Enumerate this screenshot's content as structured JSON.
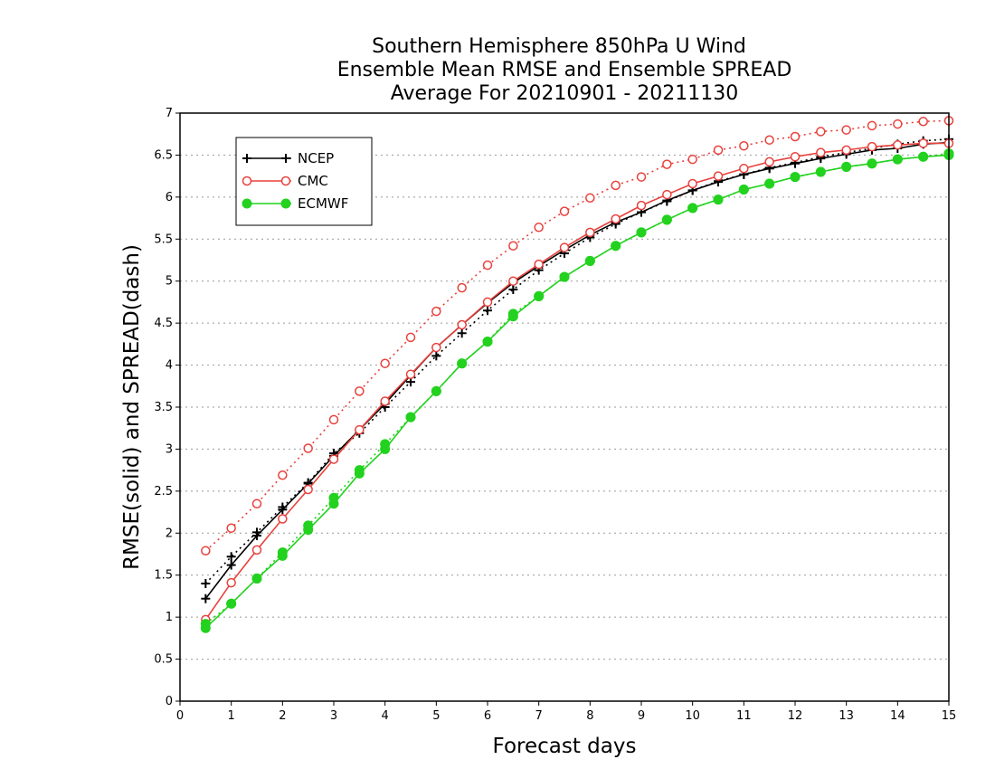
{
  "chart_data": {
    "type": "line",
    "title": [
      "Southern Hemisphere 850hPa U Wind",
      "Ensemble Mean RMSE and Ensemble SPREAD",
      "Average For 20210901 - 20211130"
    ],
    "xlabel": "Forecast days",
    "ylabel": "RMSE(solid) and SPREAD(dash)",
    "xlim": [
      0,
      15
    ],
    "ylim": [
      0,
      7
    ],
    "xticks": [
      "0",
      "1",
      "2",
      "3",
      "4",
      "5",
      "6",
      "7",
      "8",
      "9",
      "10",
      "11",
      "12",
      "13",
      "14",
      "15"
    ],
    "yticks": [
      "0",
      "0.5",
      "1",
      "1.5",
      "2",
      "2.5",
      "3",
      "3.5",
      "4",
      "4.5",
      "5",
      "5.5",
      "6",
      "6.5",
      "7"
    ],
    "grid": "horizontal-dotted",
    "legend": "top-left",
    "x": [
      0.5,
      1,
      1.5,
      2,
      2.5,
      3,
      3.5,
      4,
      4.5,
      5,
      5.5,
      6,
      6.5,
      7,
      7.5,
      8,
      8.5,
      9,
      9.5,
      10,
      10.5,
      11,
      11.5,
      12,
      12.5,
      13,
      13.5,
      14,
      14.5,
      15
    ],
    "series": [
      {
        "name": "NCEP",
        "color": "#000000",
        "marker": "plus",
        "rmse": [
          1.22,
          1.62,
          1.97,
          2.28,
          2.59,
          2.92,
          3.23,
          3.54,
          3.88,
          4.21,
          4.48,
          4.74,
          4.98,
          5.18,
          5.37,
          5.55,
          5.7,
          5.82,
          5.96,
          6.08,
          6.18,
          6.27,
          6.34,
          6.4,
          6.46,
          6.51,
          6.56,
          6.58,
          6.63,
          6.65
        ],
        "spread": [
          1.4,
          1.72,
          2.01,
          2.31,
          2.6,
          2.95,
          3.19,
          3.5,
          3.8,
          4.11,
          4.38,
          4.65,
          4.9,
          5.13,
          5.33,
          5.52,
          5.68,
          5.82,
          5.95,
          6.08,
          6.19,
          6.27,
          6.35,
          6.41,
          6.48,
          6.53,
          6.58,
          6.63,
          6.67,
          6.69
        ]
      },
      {
        "name": "CMC",
        "color": "#e8413c",
        "marker": "open-circle",
        "rmse": [
          0.97,
          1.41,
          1.8,
          2.17,
          2.52,
          2.88,
          3.23,
          3.57,
          3.89,
          4.21,
          4.48,
          4.75,
          5.0,
          5.2,
          5.4,
          5.58,
          5.74,
          5.9,
          6.03,
          6.16,
          6.25,
          6.34,
          6.42,
          6.48,
          6.53,
          6.56,
          6.6,
          6.62,
          6.64,
          6.64
        ],
        "spread": [
          1.79,
          2.06,
          2.35,
          2.69,
          3.01,
          3.35,
          3.69,
          4.02,
          4.33,
          4.64,
          4.92,
          5.19,
          5.42,
          5.64,
          5.83,
          5.99,
          6.14,
          6.24,
          6.39,
          6.45,
          6.56,
          6.61,
          6.68,
          6.72,
          6.78,
          6.8,
          6.85,
          6.87,
          6.9,
          6.91
        ]
      },
      {
        "name": "ECMWF",
        "color": "#22d21e",
        "marker": "filled-circle",
        "rmse": [
          0.87,
          1.16,
          1.46,
          1.73,
          2.04,
          2.35,
          2.71,
          3.0,
          3.38,
          3.69,
          4.02,
          4.28,
          4.58,
          4.82,
          5.05,
          5.24,
          5.42,
          5.58,
          5.73,
          5.87,
          5.97,
          6.09,
          6.16,
          6.24,
          6.3,
          6.36,
          6.4,
          6.45,
          6.48,
          6.5
        ],
        "spread": [
          0.92,
          1.16,
          1.46,
          1.77,
          2.09,
          2.42,
          2.75,
          3.06,
          3.38,
          3.69,
          4.02,
          4.28,
          4.61,
          4.82,
          5.05,
          5.24,
          5.42,
          5.58,
          5.73,
          5.87,
          5.97,
          6.09,
          6.16,
          6.24,
          6.3,
          6.36,
          6.4,
          6.45,
          6.48,
          6.52
        ]
      }
    ]
  }
}
